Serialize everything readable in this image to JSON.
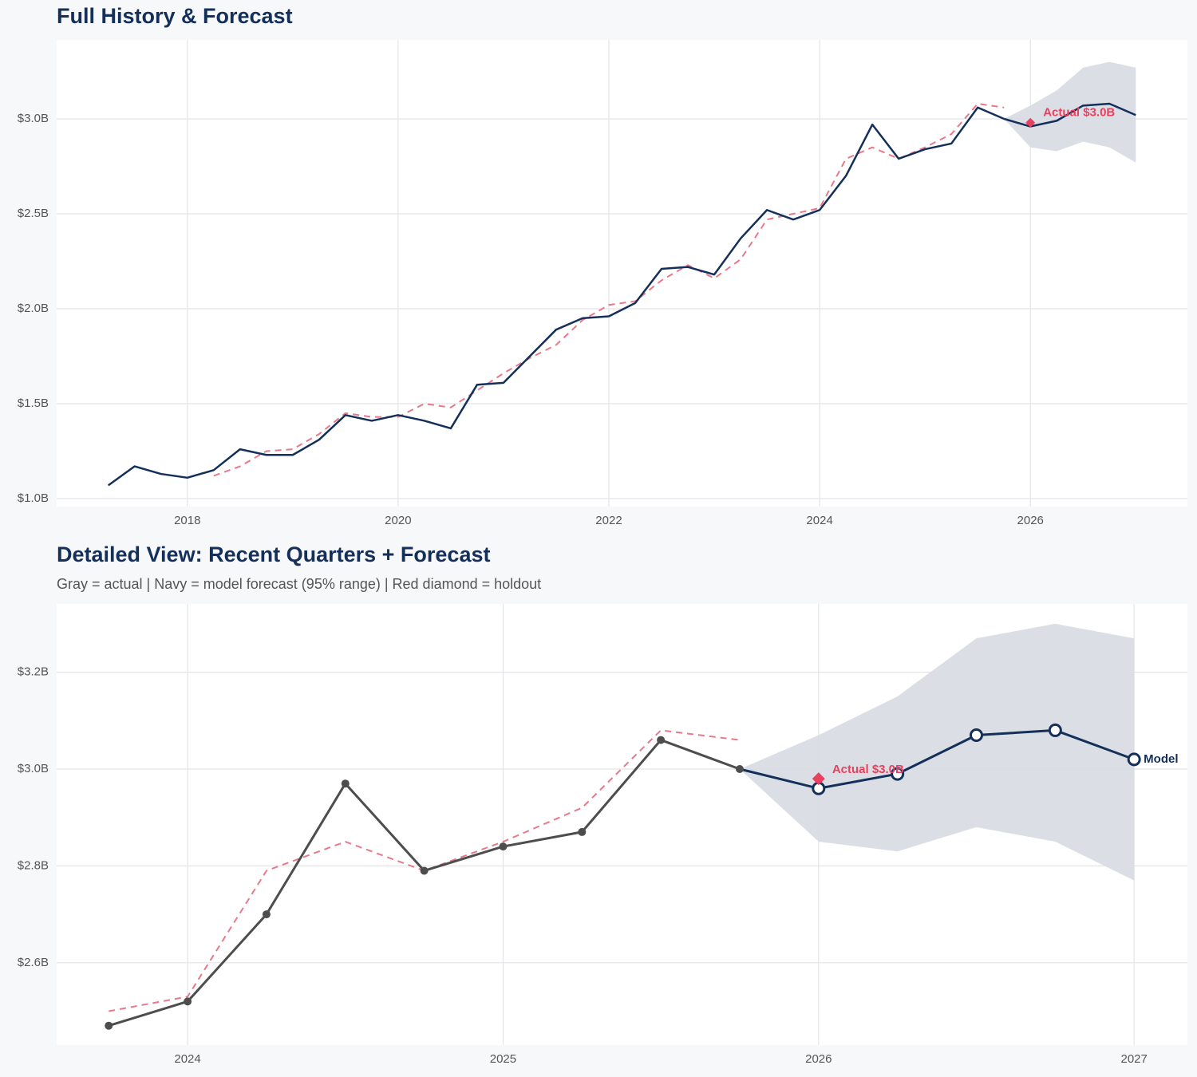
{
  "chart_data": [
    {
      "type": "line",
      "title": "Full History & Forecast",
      "xlim": [
        2016.76,
        2027.49
      ],
      "ylim": [
        0.958,
        3.416
      ],
      "xticks": [
        2018,
        2020,
        2022,
        2024,
        2026
      ],
      "yticks": [
        {
          "value": 1.0,
          "label": "$1.0B"
        },
        {
          "value": 1.5,
          "label": "$1.5B"
        },
        {
          "value": 2.0,
          "label": "$2.0B"
        },
        {
          "value": 2.5,
          "label": "$2.5B"
        },
        {
          "value": 3.0,
          "label": "$3.0B"
        }
      ],
      "grid": true,
      "series": [
        {
          "color": "#14305a",
          "width": 2.5,
          "x": [
            2017.25,
            2017.5,
            2017.75,
            2018,
            2018.25,
            2018.5,
            2018.75,
            2019,
            2019.25,
            2019.5,
            2019.75,
            2020,
            2020.25,
            2020.5,
            2020.75,
            2021,
            2021.25,
            2021.5,
            2021.75,
            2022,
            2022.25,
            2022.5,
            2022.75,
            2023,
            2023.25,
            2023.5,
            2023.75,
            2024,
            2024.25,
            2024.5,
            2024.75,
            2025,
            2025.25,
            2025.5,
            2025.75
          ],
          "values": [
            1.07,
            1.17,
            1.13,
            1.11,
            1.15,
            1.26,
            1.23,
            1.23,
            1.31,
            1.44,
            1.41,
            1.44,
            1.41,
            1.37,
            1.6,
            1.61,
            1.75,
            1.89,
            1.95,
            1.96,
            2.03,
            2.21,
            2.22,
            2.18,
            2.37,
            2.52,
            2.47,
            2.52,
            2.7,
            2.97,
            2.79,
            2.84,
            2.87,
            3.06,
            3.0
          ]
        },
        {
          "color": "#14305a",
          "width": 2.5,
          "x": [
            2026,
            2026.25,
            2026.5,
            2026.75,
            2027
          ],
          "values": [
            2.96,
            2.99,
            3.07,
            3.08,
            3.02
          ]
        },
        {
          "color": "#e8798b",
          "width": 2,
          "dash": true,
          "x": [
            2018.25,
            2018.5,
            2018.75,
            2019,
            2019.25,
            2019.5,
            2019.75,
            2020,
            2020.25,
            2020.5,
            2020.75,
            2021,
            2021.25,
            2021.5,
            2021.75,
            2022,
            2022.25,
            2022.5,
            2022.75,
            2023,
            2023.25,
            2023.5,
            2023.75,
            2024,
            2024.25,
            2024.5,
            2024.75,
            2025,
            2025.25,
            2025.5,
            2025.75
          ],
          "values": [
            1.12,
            1.17,
            1.25,
            1.26,
            1.34,
            1.45,
            1.43,
            1.43,
            1.5,
            1.48,
            1.57,
            1.66,
            1.74,
            1.81,
            1.94,
            2.02,
            2.04,
            2.15,
            2.23,
            2.16,
            2.26,
            2.47,
            2.5,
            2.53,
            2.79,
            2.85,
            2.79,
            2.85,
            2.92,
            3.08,
            3.06
          ]
        }
      ],
      "band": {
        "color": "#d9dde4",
        "x": [
          2025.75,
          2026,
          2026.25,
          2026.5,
          2026.75,
          2027
        ],
        "lower": [
          3.0,
          2.85,
          2.83,
          2.88,
          2.85,
          2.77
        ],
        "upper": [
          3.0,
          3.07,
          3.15,
          3.27,
          3.3,
          3.27
        ]
      },
      "holdout": {
        "x": 2026,
        "value": 2.98,
        "label": "Actual $3.0B",
        "color": "#e8415f"
      }
    },
    {
      "type": "line",
      "title": "Detailed View: Recent Quarters + Forecast",
      "subtitle": "Gray = actual  |  Navy = model forecast (95% range)  |  Red diamond = holdout",
      "xlim": [
        2023.585,
        2027.169
      ],
      "ylim": [
        2.43,
        3.341
      ],
      "xticks": [
        2024,
        2025,
        2026,
        2027
      ],
      "yticks": [
        {
          "value": 2.6,
          "label": "$2.6B"
        },
        {
          "value": 2.8,
          "label": "$2.8B"
        },
        {
          "value": 3.0,
          "label": "$3.0B"
        },
        {
          "value": 3.2,
          "label": "$3.2B"
        }
      ],
      "grid": true,
      "series": [
        {
          "color": "#4d4d4d",
          "width": 3,
          "marker": "dot",
          "x": [
            2023.75,
            2024,
            2024.25,
            2024.5,
            2024.75,
            2025,
            2025.25,
            2025.5,
            2025.75
          ],
          "values": [
            2.47,
            2.52,
            2.7,
            2.97,
            2.79,
            2.84,
            2.87,
            3.06,
            3.0
          ]
        },
        {
          "color": "#14305a",
          "width": 3,
          "marker": "ring",
          "x": [
            2026,
            2026.25,
            2026.5,
            2026.75,
            2027
          ],
          "values": [
            2.96,
            2.99,
            3.07,
            3.08,
            3.02
          ],
          "end_label": "Model"
        },
        {
          "color": "#e8798b",
          "width": 2,
          "dash": true,
          "x": [
            2023.75,
            2024,
            2024.25,
            2024.5,
            2024.75,
            2025,
            2025.25,
            2025.5,
            2025.75
          ],
          "values": [
            2.5,
            2.53,
            2.79,
            2.85,
            2.79,
            2.85,
            2.92,
            3.08,
            3.06
          ]
        }
      ],
      "band": {
        "color": "#d9dde4",
        "x": [
          2025.75,
          2026,
          2026.25,
          2026.5,
          2026.75,
          2027
        ],
        "lower": [
          3.0,
          2.85,
          2.83,
          2.88,
          2.85,
          2.77
        ],
        "upper": [
          3.0,
          3.07,
          3.15,
          3.27,
          3.3,
          3.27
        ]
      },
      "holdout": {
        "x": 2026,
        "value": 2.98,
        "label": "Actual $3.0B",
        "color": "#e8415f"
      }
    }
  ]
}
